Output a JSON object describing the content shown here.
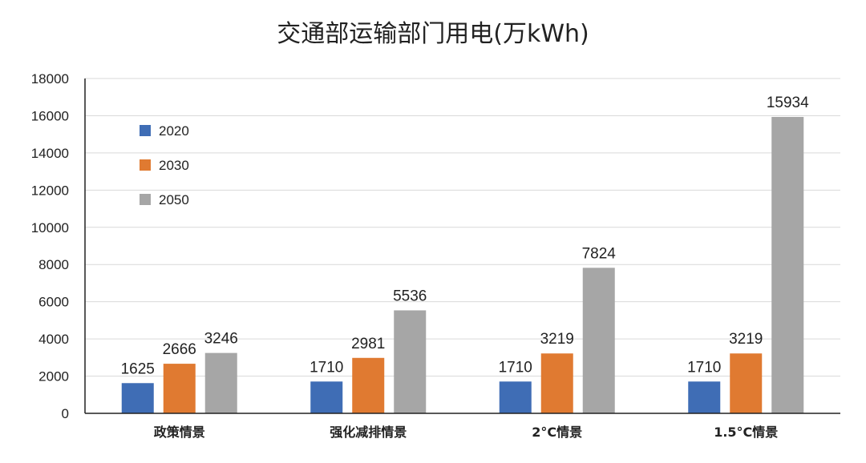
{
  "chart_data": {
    "type": "bar",
    "title": "交通部运输部门用电(万kWh)",
    "xlabel": "",
    "ylabel": "",
    "ylim": [
      0,
      18000
    ],
    "yticks": [
      0,
      2000,
      4000,
      6000,
      8000,
      10000,
      12000,
      14000,
      16000,
      18000
    ],
    "grid": true,
    "legend_position": "top-left",
    "categories": [
      "政策情景",
      "强化减排情景",
      "2°C情景",
      "1.5°C情景"
    ],
    "series": [
      {
        "name": "2020",
        "color": "#3f6db5",
        "values": [
          1625,
          1710,
          1710,
          1710
        ]
      },
      {
        "name": "2030",
        "color": "#e07a31",
        "values": [
          2666,
          2981,
          3219,
          3219
        ]
      },
      {
        "name": "2050",
        "color": "#a6a6a6",
        "values": [
          3246,
          5536,
          7824,
          15934
        ]
      }
    ]
  }
}
